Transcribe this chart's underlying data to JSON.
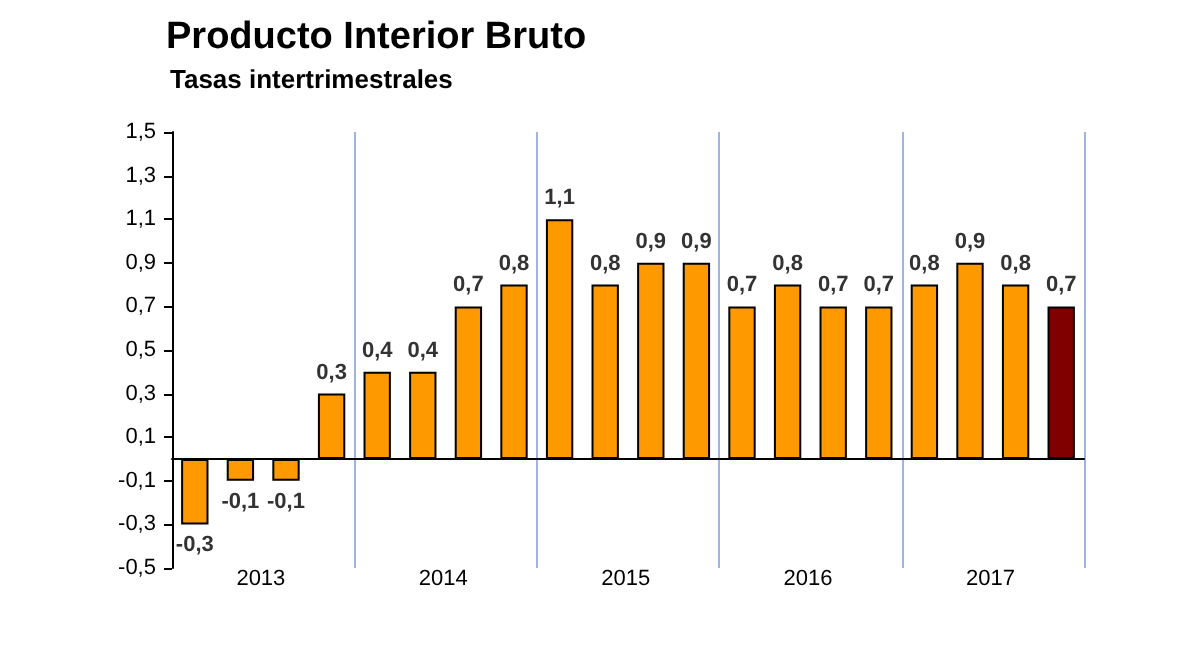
{
  "chart_data": {
    "type": "bar",
    "title": "Producto Interior Bruto",
    "subtitle": "Tasas intertrimestrales",
    "categories": [
      null,
      "2013",
      null,
      null,
      null,
      "2014",
      null,
      null,
      null,
      "2015",
      null,
      null,
      null,
      "2016",
      null,
      null,
      null,
      "2017",
      null,
      null
    ],
    "values": [
      -0.3,
      -0.1,
      -0.1,
      0.3,
      0.4,
      0.4,
      0.7,
      0.8,
      1.1,
      0.8,
      0.9,
      0.9,
      0.7,
      0.8,
      0.7,
      0.7,
      0.8,
      0.9,
      0.8,
      0.7
    ],
    "colors": [
      "#ff9900",
      "#ff9900",
      "#ff9900",
      "#ff9900",
      "#ff9900",
      "#ff9900",
      "#ff9900",
      "#ff9900",
      "#ff9900",
      "#ff9900",
      "#ff9900",
      "#ff9900",
      "#ff9900",
      "#ff9900",
      "#ff9900",
      "#ff9900",
      "#ff9900",
      "#ff9900",
      "#ff9900",
      "#800000"
    ],
    "ylim": [
      -0.5,
      1.5
    ],
    "yticks": [
      {
        "value": -0.5,
        "label": "-0,5"
      },
      {
        "value": -0.3,
        "label": "-0,3"
      },
      {
        "value": -0.1,
        "label": "-0,1"
      },
      {
        "value": 0.1,
        "label": "0,1"
      },
      {
        "value": 0.3,
        "label": "0,3"
      },
      {
        "value": 0.5,
        "label": "0,5"
      },
      {
        "value": 0.7,
        "label": "0,7"
      },
      {
        "value": 0.9,
        "label": "0,9"
      },
      {
        "value": 1.1,
        "label": "1,1"
      },
      {
        "value": 1.3,
        "label": "1,3"
      },
      {
        "value": 1.5,
        "label": "1,5"
      }
    ],
    "value_labels": [
      "-0,3",
      "-0,1",
      "-0,1",
      "0,3",
      "0,4",
      "0,4",
      "0,7",
      "0,8",
      "1,1",
      "0,8",
      "0,9",
      "0,9",
      "0,7",
      "0,8",
      "0,7",
      "0,7",
      "0,8",
      "0,9",
      "0,8",
      "0,7"
    ],
    "grid": "x"
  }
}
